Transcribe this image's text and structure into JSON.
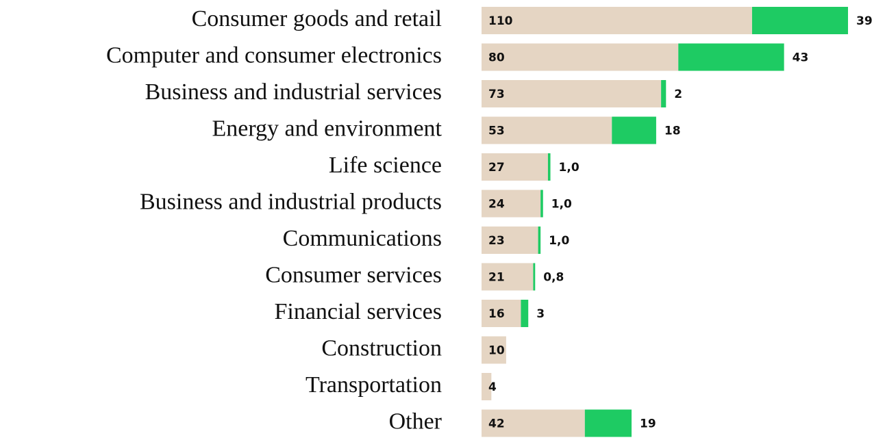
{
  "chart_data": {
    "type": "stacked-bar-horizontal",
    "categories": [
      "Consumer goods and retail",
      "Computer and consumer electronics",
      "Business and industrial services",
      "Energy and environment",
      "Life science",
      "Business and industrial products",
      "Communications",
      "Consumer services",
      "Financial services",
      "Construction",
      "Transportation",
      "Other"
    ],
    "series": [
      {
        "color": "#e5d5c3",
        "values": [
          110,
          80,
          73,
          53,
          27,
          24,
          23,
          21,
          16,
          10,
          4,
          42
        ]
      },
      {
        "color": "#1ecb63",
        "values": [
          39,
          43,
          2,
          18,
          1,
          1,
          1,
          0.8,
          3,
          null,
          null,
          19
        ],
        "value_labels": [
          "39",
          "43",
          "2",
          "18",
          "1,0",
          "1,0",
          "1,0",
          "0,8",
          "3",
          null,
          null,
          "19"
        ]
      }
    ]
  }
}
